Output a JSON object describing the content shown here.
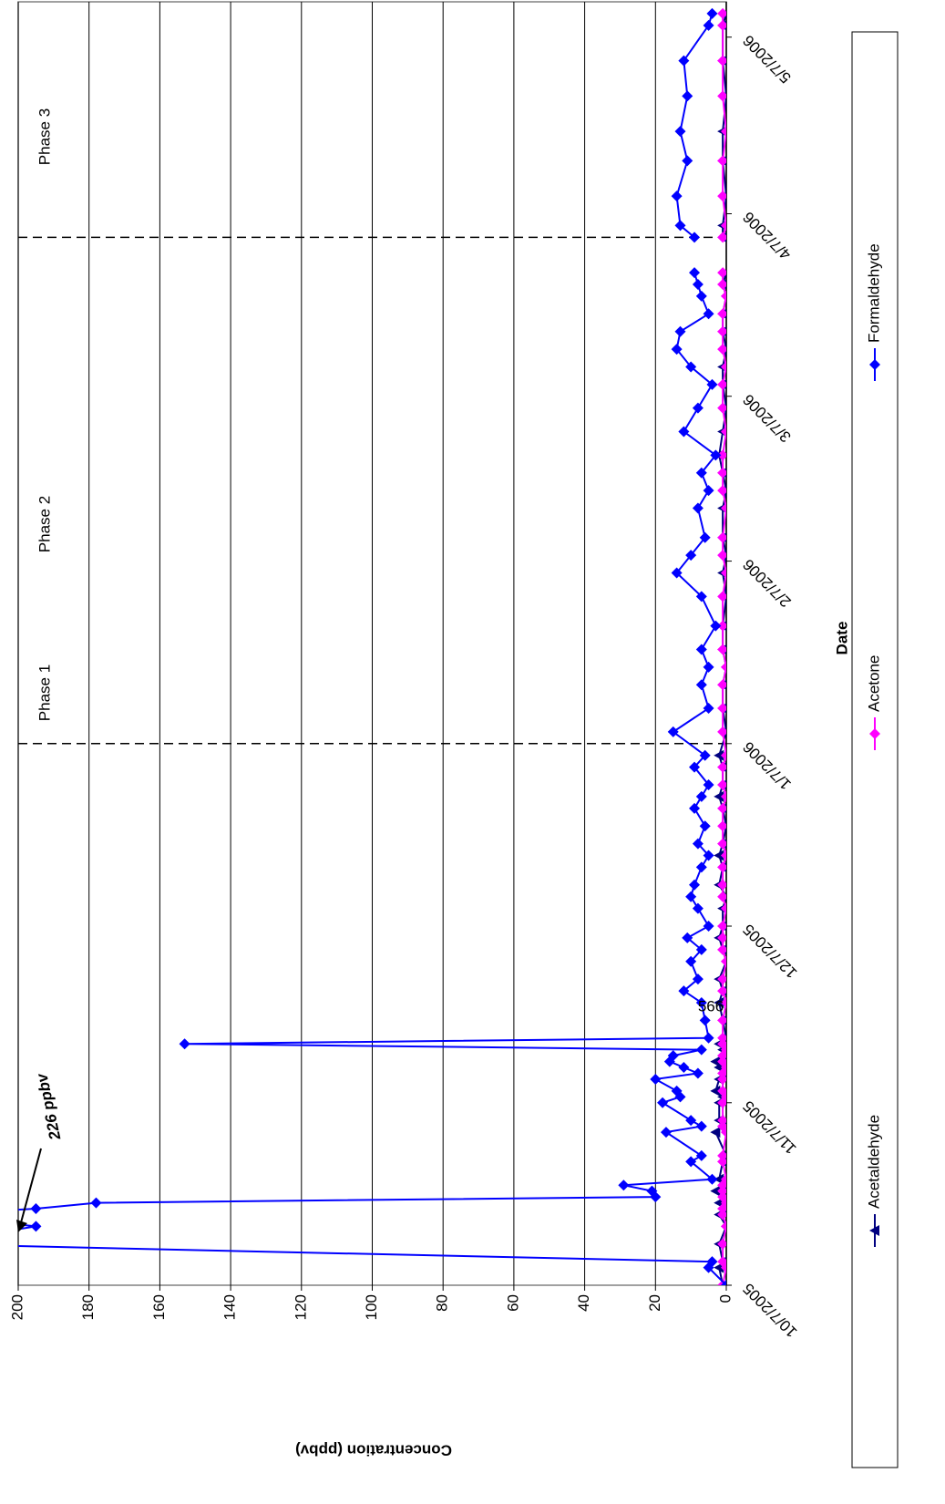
{
  "chart_data": {
    "type": "line",
    "x_label": "Date",
    "y_label": "Concentration (ppbv)",
    "x": [
      "10/7/2005",
      "10/10/2005",
      "10/11/2005",
      "10/14/2005",
      "10/17/2005",
      "10/19/2005",
      "10/20/2005",
      "10/21/2005",
      "10/22/2005",
      "10/23/2005",
      "10/24/2005",
      "10/25/2005",
      "10/28/2005",
      "10/29/2005",
      "11/2/2005",
      "11/3/2005",
      "11/4/2005",
      "11/7/2005",
      "11/8/2005",
      "11/9/2005",
      "11/11/2005",
      "11/12/2005",
      "11/13/2005",
      "11/14/2005",
      "11/15/2005",
      "11/16/2005",
      "11/17/2005",
      "11/18/2005",
      "11/21/2005",
      "11/24/2005",
      "11/26/2005",
      "11/28/2005",
      "12/1/2005",
      "12/3/2005",
      "12/5/2005",
      "12/7/2005",
      "12/10/2005",
      "12/12/2005",
      "12/14/2005",
      "12/17/2005",
      "12/19/2005",
      "12/21/2005",
      "12/24/2005",
      "12/27/2005",
      "12/29/2005",
      "12/31/2005",
      "1/3/2006",
      "1/5/2006",
      "1/9/2006",
      "1/13/2006",
      "1/17/2006",
      "1/20/2006",
      "1/23/2006",
      "1/27/2006",
      "2/1/2006",
      "2/5/2006",
      "2/8/2006",
      "2/11/2006",
      "2/16/2006",
      "2/19/2006",
      "2/22/2006",
      "2/25/2006",
      "3/1/2006",
      "3/5/2006",
      "3/9/2006",
      "3/12/2006",
      "3/15/2006",
      "3/18/2006",
      "3/21/2006",
      "3/24/2006",
      "3/26/2006",
      "3/28/2006",
      "3/31/2006",
      "4/3/2006",
      "4/5/2006",
      "4/10/2006",
      "4/16/2006",
      "4/21/2006",
      "4/27/2006",
      "5/3/2006",
      "5/9/2006",
      "5/11/2006"
    ],
    "series": [
      {
        "name": "Acetaldehyde",
        "color": "#000080",
        "marker": "triangle",
        "values": [
          1,
          2,
          1,
          2,
          0,
          2,
          1,
          2,
          0,
          3,
          1,
          2,
          1,
          0,
          3,
          1,
          2,
          2,
          1,
          3,
          2,
          1,
          2,
          3,
          1,
          1,
          2,
          0,
          1,
          2,
          1,
          2,
          0,
          1,
          2,
          1,
          1,
          0,
          2,
          1,
          2,
          1,
          0,
          1,
          2,
          1,
          1,
          2,
          0,
          1,
          1,
          0,
          1,
          1,
          0,
          1,
          0,
          1,
          1,
          0,
          1,
          2,
          1,
          0,
          1,
          1,
          0,
          1,
          1,
          0,
          1,
          0,
          null,
          1,
          1,
          0,
          1,
          1,
          0,
          1,
          1,
          0
        ]
      },
      {
        "name": "Acetone",
        "color": "#ff00ff",
        "marker": "diamond",
        "values": [
          1,
          0,
          1,
          1,
          0,
          1,
          1,
          0,
          1,
          1,
          1,
          0,
          1,
          1,
          0,
          1,
          1,
          1,
          0,
          1,
          1,
          1,
          0,
          1,
          1,
          0,
          1,
          1,
          1,
          0,
          1,
          1,
          0,
          1,
          1,
          1,
          0,
          1,
          1,
          1,
          0,
          1,
          1,
          1,
          0,
          1,
          1,
          0,
          1,
          1,
          1,
          0,
          1,
          1,
          1,
          0,
          1,
          1,
          0,
          1,
          1,
          1,
          0,
          1,
          1,
          0,
          1,
          1,
          1,
          0,
          1,
          1,
          null,
          1,
          0,
          1,
          1,
          0,
          1,
          1,
          1,
          1
        ]
      },
      {
        "name": "Formaldehyde",
        "color": "#0000ff",
        "marker": "diamond",
        "values": [
          0,
          5,
          4,
          226,
          195,
          226,
          195,
          178,
          20,
          21,
          29,
          4,
          10,
          7,
          17,
          7,
          10,
          18,
          13,
          14,
          20,
          8,
          12,
          16,
          15,
          7,
          153,
          5,
          6,
          7,
          12,
          8,
          10,
          7,
          11,
          5,
          8,
          10,
          9,
          7,
          5,
          8,
          6,
          9,
          7,
          5,
          9,
          6,
          15,
          5,
          7,
          5,
          7,
          3,
          7,
          14,
          10,
          6,
          8,
          5,
          7,
          3,
          12,
          8,
          4,
          10,
          14,
          13,
          5,
          7,
          8,
          9,
          null,
          9,
          13,
          14,
          11,
          13,
          11,
          12,
          5,
          4
        ]
      }
    ],
    "xlim": [
      "10/7/2005",
      "5/13/2006"
    ],
    "xticks": [
      "10/7/2005",
      "11/7/2005",
      "12/7/2005",
      "1/7/2006",
      "2/7/2006",
      "3/7/2006",
      "4/7/2006",
      "5/7/2006"
    ],
    "ylim": [
      0,
      200
    ],
    "yticks": [
      0,
      20,
      40,
      60,
      80,
      100,
      120,
      140,
      160,
      180,
      200
    ],
    "grid": true,
    "legend": "bottom",
    "phases": [
      "Phase 1",
      "Phase 2",
      "Phase 3"
    ],
    "phase_boundaries": [
      "1/7/2006",
      "4/3/2006"
    ],
    "annotations": [
      "226 ppbv",
      "566"
    ]
  }
}
